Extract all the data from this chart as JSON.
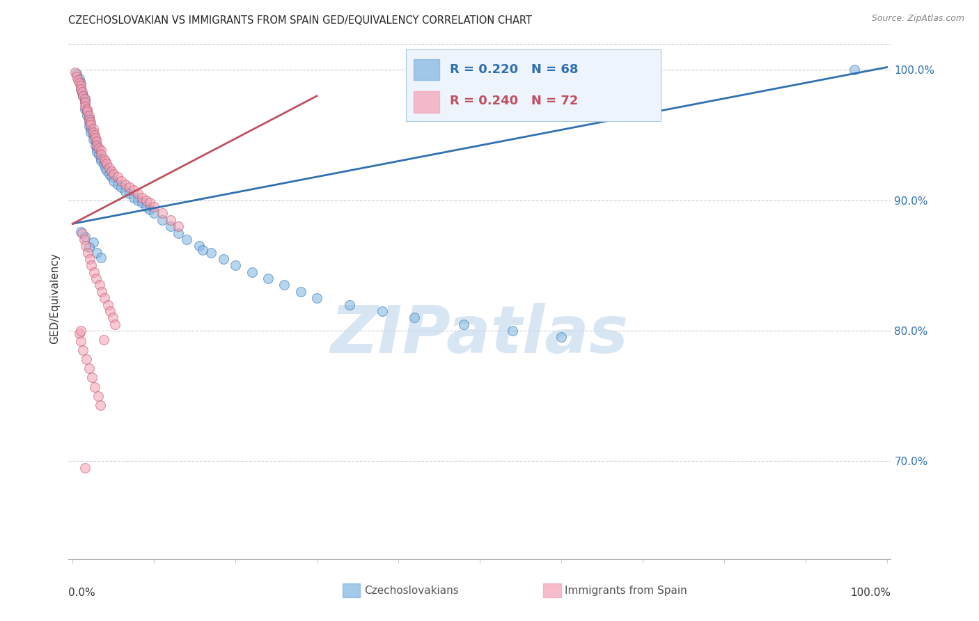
{
  "title": "CZECHOSLOVAKIAN VS IMMIGRANTS FROM SPAIN GED/EQUIVALENCY CORRELATION CHART",
  "source": "Source: ZipAtlas.com",
  "ylabel": "GED/Equivalency",
  "blue_R": 0.22,
  "blue_N": 68,
  "pink_R": 0.24,
  "pink_N": 72,
  "blue_color": "#7fb3e0",
  "pink_color": "#f4a0b5",
  "blue_line_color": "#3070b0",
  "pink_line_color": "#c05060",
  "watermark": "ZIPatlas",
  "ymin": 0.625,
  "ymax": 1.025,
  "xmin": -0.005,
  "xmax": 1.005,
  "ytick_positions": [
    0.7,
    0.8,
    0.9,
    1.0
  ],
  "ytick_labels": [
    "70.0%",
    "80.0%",
    "90.0%",
    "100.0%"
  ],
  "blue_line_x0": 0.0,
  "blue_line_x1": 1.0,
  "blue_line_y0": 0.882,
  "blue_line_y1": 1.002,
  "pink_line_x0": 0.0,
  "pink_line_x1": 0.3,
  "pink_line_y0": 0.882,
  "pink_line_y1": 0.98,
  "blue_scatter_x": [
    0.005,
    0.008,
    0.01,
    0.01,
    0.012,
    0.013,
    0.015,
    0.015,
    0.015,
    0.018,
    0.018,
    0.02,
    0.02,
    0.02,
    0.022,
    0.022,
    0.025,
    0.025,
    0.028,
    0.028,
    0.03,
    0.03,
    0.032,
    0.035,
    0.035,
    0.038,
    0.04,
    0.042,
    0.045,
    0.048,
    0.05,
    0.055,
    0.06,
    0.065,
    0.07,
    0.075,
    0.08,
    0.085,
    0.09,
    0.095,
    0.1,
    0.11,
    0.12,
    0.13,
    0.14,
    0.155,
    0.17,
    0.185,
    0.2,
    0.22,
    0.24,
    0.26,
    0.28,
    0.3,
    0.34,
    0.38,
    0.42,
    0.48,
    0.54,
    0.6,
    0.01,
    0.015,
    0.025,
    0.02,
    0.03,
    0.035,
    0.96,
    0.16
  ],
  "blue_scatter_y": [
    0.997,
    0.993,
    0.99,
    0.985,
    0.982,
    0.98,
    0.978,
    0.975,
    0.97,
    0.968,
    0.965,
    0.963,
    0.96,
    0.957,
    0.955,
    0.952,
    0.95,
    0.947,
    0.945,
    0.942,
    0.94,
    0.937,
    0.935,
    0.932,
    0.93,
    0.928,
    0.925,
    0.923,
    0.92,
    0.918,
    0.915,
    0.912,
    0.91,
    0.907,
    0.905,
    0.902,
    0.9,
    0.898,
    0.895,
    0.893,
    0.89,
    0.885,
    0.88,
    0.875,
    0.87,
    0.865,
    0.86,
    0.855,
    0.85,
    0.845,
    0.84,
    0.835,
    0.83,
    0.825,
    0.82,
    0.815,
    0.81,
    0.805,
    0.8,
    0.795,
    0.876,
    0.872,
    0.868,
    0.864,
    0.86,
    0.856,
    1.0,
    0.862
  ],
  "pink_scatter_x": [
    0.003,
    0.005,
    0.007,
    0.008,
    0.01,
    0.01,
    0.012,
    0.013,
    0.015,
    0.015,
    0.015,
    0.018,
    0.018,
    0.02,
    0.02,
    0.022,
    0.022,
    0.025,
    0.025,
    0.027,
    0.028,
    0.03,
    0.03,
    0.032,
    0.035,
    0.035,
    0.038,
    0.04,
    0.042,
    0.045,
    0.048,
    0.05,
    0.055,
    0.06,
    0.065,
    0.07,
    0.075,
    0.08,
    0.085,
    0.09,
    0.095,
    0.1,
    0.11,
    0.12,
    0.13,
    0.012,
    0.014,
    0.016,
    0.019,
    0.021,
    0.023,
    0.026,
    0.029,
    0.033,
    0.036,
    0.039,
    0.043,
    0.046,
    0.049,
    0.052,
    0.008,
    0.01,
    0.013,
    0.017,
    0.02,
    0.024,
    0.027,
    0.031,
    0.034,
    0.01,
    0.038,
    0.015
  ],
  "pink_scatter_y": [
    0.998,
    0.995,
    0.992,
    0.99,
    0.988,
    0.985,
    0.983,
    0.98,
    0.978,
    0.975,
    0.972,
    0.97,
    0.968,
    0.965,
    0.962,
    0.96,
    0.958,
    0.955,
    0.952,
    0.95,
    0.948,
    0.945,
    0.942,
    0.94,
    0.938,
    0.935,
    0.932,
    0.93,
    0.928,
    0.925,
    0.922,
    0.92,
    0.918,
    0.915,
    0.912,
    0.91,
    0.908,
    0.905,
    0.902,
    0.9,
    0.898,
    0.895,
    0.89,
    0.885,
    0.88,
    0.875,
    0.87,
    0.865,
    0.86,
    0.855,
    0.85,
    0.845,
    0.84,
    0.835,
    0.83,
    0.825,
    0.82,
    0.815,
    0.81,
    0.805,
    0.798,
    0.792,
    0.785,
    0.778,
    0.771,
    0.764,
    0.757,
    0.75,
    0.743,
    0.8,
    0.793,
    0.695
  ]
}
